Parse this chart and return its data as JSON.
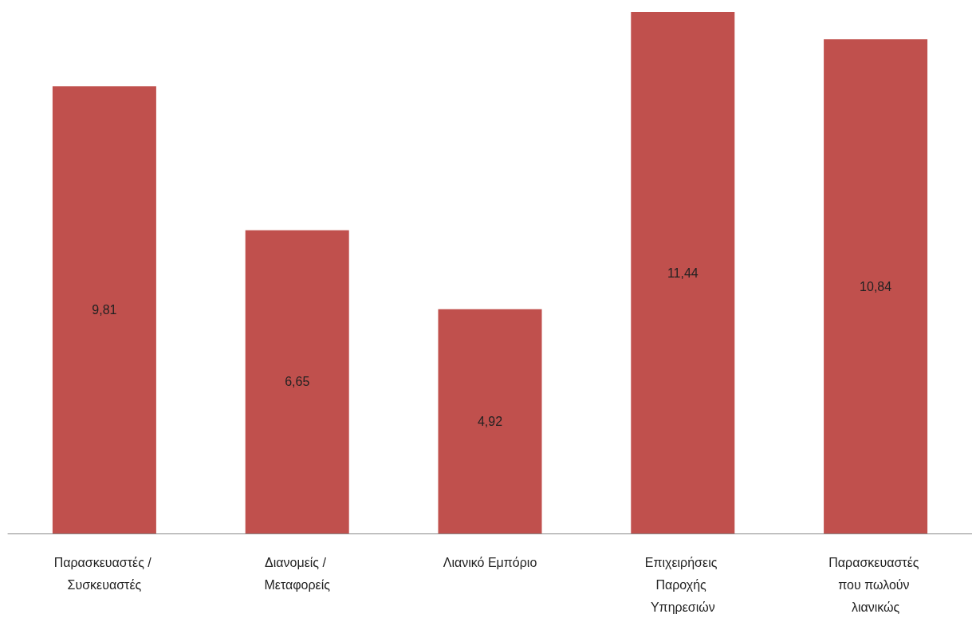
{
  "chart_data": {
    "type": "bar",
    "categories": [
      "Παρασκευαστές / Συσκευαστές",
      "Διανομείς / Μεταφορείς",
      "Λιανικό Εμπόριο",
      "Επιχειρήσεις Παροχής Υπηρεσιών",
      "Παρασκευαστές που πωλούν λιανικώς"
    ],
    "values": [
      9.81,
      6.65,
      4.92,
      11.44,
      10.84
    ],
    "value_labels": [
      "9,81",
      "6,65",
      "4,92",
      "11,44",
      "10,84"
    ],
    "color": "#c0504d",
    "grid": false
  }
}
